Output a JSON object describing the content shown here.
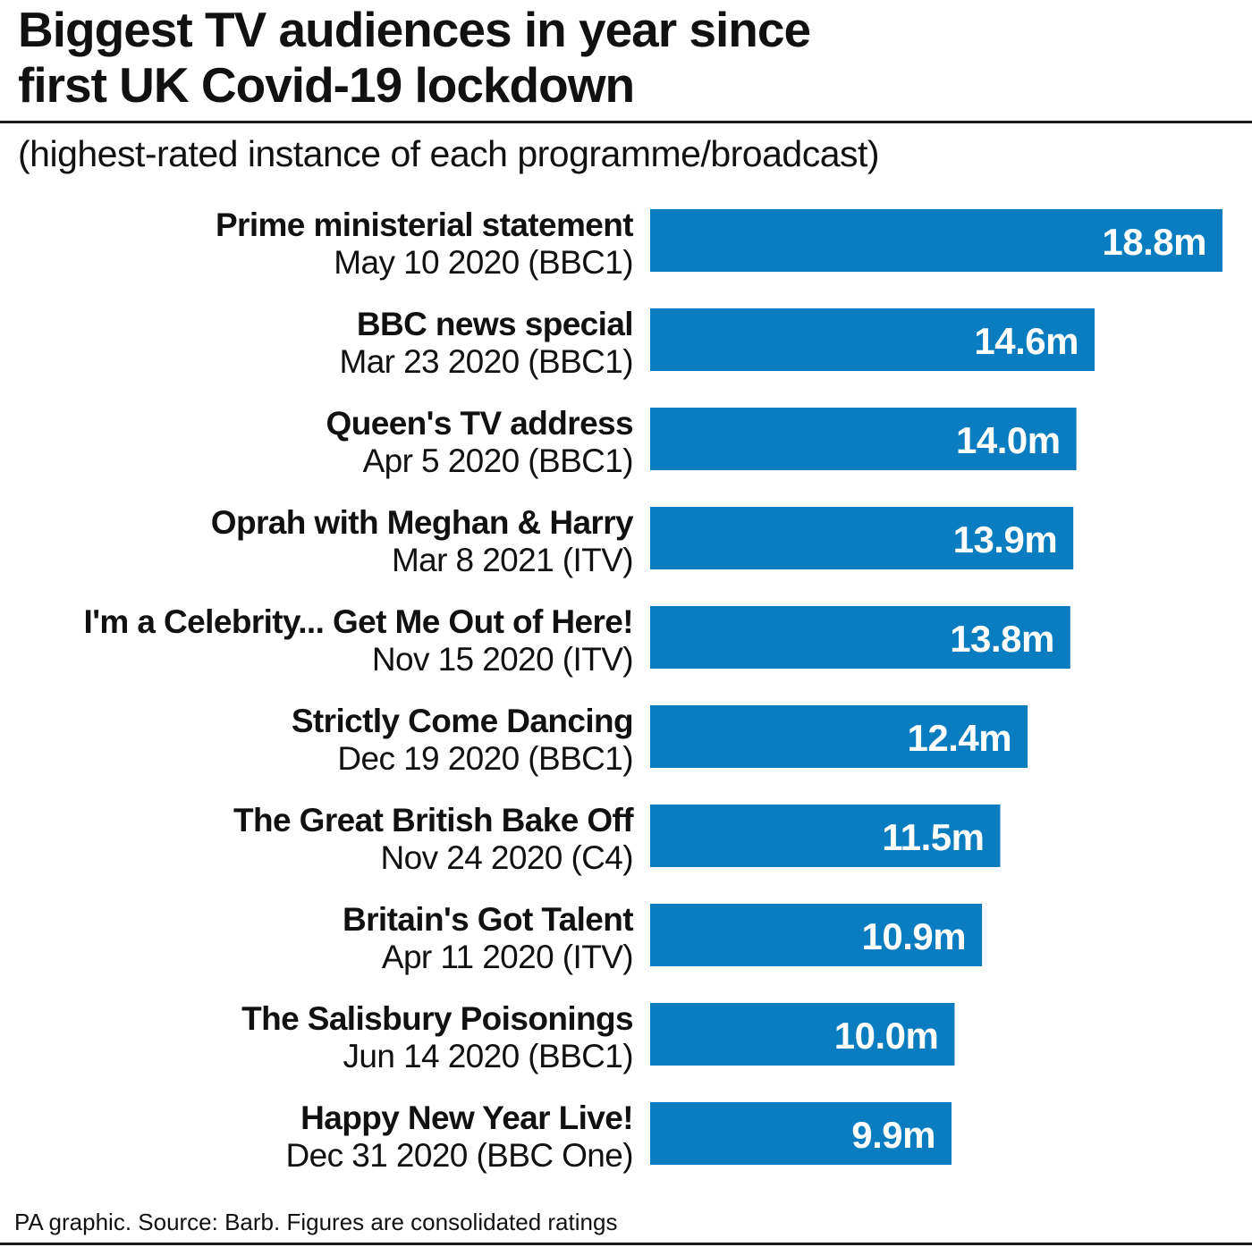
{
  "title_lines": [
    "Biggest TV audiences in year since",
    "first UK Covid-19 lockdown"
  ],
  "subtitle": "(highest-rated instance of each programme/broadcast)",
  "footer": "PA graphic. Source: Barb. Figures are consolidated ratings",
  "colors": {
    "bar": "#0a7dc0",
    "text": "#111111",
    "rule": "#1a1a1a"
  },
  "chart_data": {
    "type": "bar",
    "orientation": "horizontal",
    "title": "Biggest TV audiences in year since first UK Covid-19 lockdown",
    "subtitle": "(highest-rated instance of each programme/broadcast)",
    "unit": "m",
    "categories": [
      "Prime ministerial statement",
      "BBC news special",
      "Queen's TV address",
      "Oprah with Meghan & Harry",
      "I'm a Celebrity... Get Me Out of Here!",
      "Strictly Come Dancing",
      "The Great British Bake Off",
      "Britain's Got Talent",
      "The Salisbury Poisonings",
      "Happy New Year Live!"
    ],
    "category_details": [
      "May 10 2020 (BBC1)",
      "Mar 23 2020 (BBC1)",
      "Apr 5 2020 (BBC1)",
      "Mar 8 2021 (ITV)",
      "Nov 15 2020 (ITV)",
      "Dec 19 2020 (BBC1)",
      "Nov 24 2020 (C4)",
      "Apr 11 2020 (ITV)",
      "Jun 14 2020 (BBC1)",
      "Dec 31 2020 (BBC One)"
    ],
    "values": [
      18.8,
      14.6,
      14.0,
      13.9,
      13.8,
      12.4,
      11.5,
      10.9,
      10.0,
      9.9
    ],
    "value_labels": [
      "18.8m",
      "14.6m",
      "14.0m",
      "13.9m",
      "13.8m",
      "12.4m",
      "11.5m",
      "10.9m",
      "10.0m",
      "9.9m"
    ],
    "xlim": [
      0,
      18.8
    ],
    "grid": false,
    "legend": "none"
  }
}
